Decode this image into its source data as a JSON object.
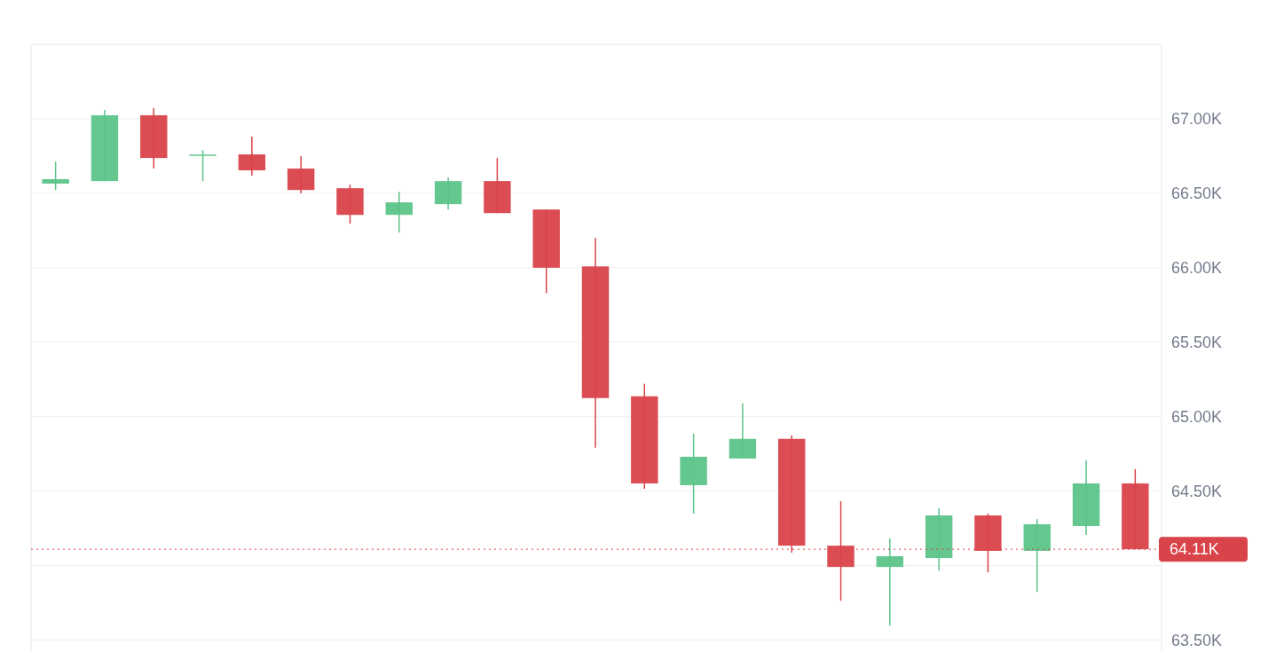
{
  "chart_data": {
    "type": "candlestick",
    "categories": [
      null,
      null,
      null,
      null,
      null,
      null,
      null,
      null,
      null,
      null,
      null,
      null,
      null,
      null,
      null,
      null,
      null,
      null,
      null,
      null,
      null,
      null,
      null
    ],
    "ohlc": [
      [
        66565,
        66713,
        66522,
        66595
      ],
      [
        66582,
        67060,
        66582,
        67024
      ],
      [
        67024,
        67072,
        66666,
        66737
      ],
      [
        66755,
        66791,
        66582,
        66760
      ],
      [
        66761,
        66881,
        66618,
        66654
      ],
      [
        66666,
        66749,
        66499,
        66522
      ],
      [
        66534,
        66558,
        66296,
        66355
      ],
      [
        66355,
        66510,
        66236,
        66439
      ],
      [
        66427,
        66606,
        66391,
        66582
      ],
      [
        66582,
        66737,
        66367,
        66367
      ],
      [
        66391,
        66391,
        65830,
        66000
      ],
      [
        66009,
        66200,
        64791,
        65125
      ],
      [
        65137,
        65221,
        64516,
        64552
      ],
      [
        64540,
        64887,
        64349,
        64731
      ],
      [
        64719,
        65090,
        64719,
        64851
      ],
      [
        64851,
        64875,
        64087,
        64134
      ],
      [
        64134,
        64433,
        63764,
        63991
      ],
      [
        63991,
        64182,
        63597,
        64063
      ],
      [
        64051,
        64385,
        63967,
        64337
      ],
      [
        64337,
        64349,
        63955,
        64099
      ],
      [
        64099,
        64313,
        63824,
        64278
      ],
      [
        64266,
        64707,
        64206,
        64552
      ],
      [
        64552,
        64648,
        64110,
        64110
      ]
    ],
    "colors": [
      "#5cc489",
      "#5cc489",
      "#d9434a",
      "#5cc489",
      "#d9434a",
      "#d9434a",
      "#d9434a",
      "#5cc489",
      "#5cc489",
      "#d9434a",
      "#d9434a",
      "#d9434a",
      "#d9434a",
      "#5cc489",
      "#5cc489",
      "#d9434a",
      "#d9434a",
      "#5cc489",
      "#5cc489",
      "#d9434a",
      "#5cc489",
      "#5cc489",
      "#d9434a"
    ],
    "ylim": [
      63420,
      67500
    ],
    "yticks": [
      {
        "value": 63500,
        "label": "63.50K"
      },
      {
        "value": 64000,
        "label": null
      },
      {
        "value": 64500,
        "label": "64.50K"
      },
      {
        "value": 65000,
        "label": "65.00K"
      },
      {
        "value": 65500,
        "label": "65.50K"
      },
      {
        "value": 66000,
        "label": "66.00K"
      },
      {
        "value": 66500,
        "label": "66.50K"
      },
      {
        "value": 67000,
        "label": "67.00K"
      }
    ],
    "grid": "y",
    "ref_lines": [
      {
        "axis": "y",
        "value": 64110,
        "label": "64.11K",
        "color": "#d9434a",
        "line_style": "dotted"
      }
    ]
  }
}
